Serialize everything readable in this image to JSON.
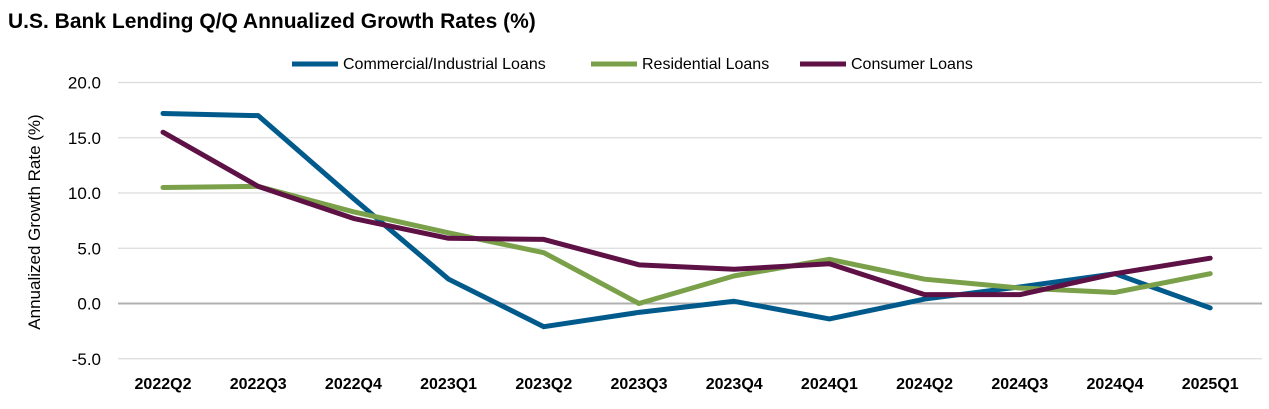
{
  "chart_data": {
    "type": "line",
    "title": "U.S. Bank Lending Q/Q Annualized Growth Rates (%)",
    "xlabel": "",
    "ylabel": "Annualized Growth Rate (%)",
    "ylim": [
      -5,
      20
    ],
    "yticks": [
      "20.0",
      "15.0",
      "10.0",
      "5.0",
      "0.0",
      "-5.0"
    ],
    "ytick_values": [
      20,
      15,
      10,
      5,
      0,
      -5
    ],
    "grid": true,
    "legend_position": "top",
    "categories": [
      "2022Q2",
      "2022Q3",
      "2022Q4",
      "2023Q1",
      "2023Q2",
      "2023Q3",
      "2023Q4",
      "2024Q1",
      "2024Q2",
      "2024Q3",
      "2024Q4",
      "2025Q1"
    ],
    "series": [
      {
        "name": "Commercial/Industrial Loans",
        "color": "#005a8c",
        "values": [
          17.2,
          17.0,
          9.5,
          2.2,
          -2.1,
          -0.8,
          0.2,
          -1.4,
          0.4,
          1.5,
          2.7,
          -0.4
        ]
      },
      {
        "name": "Residential Loans",
        "color": "#7aa04a",
        "values": [
          10.5,
          10.6,
          8.3,
          6.4,
          4.6,
          0.0,
          2.5,
          4.0,
          2.2,
          1.4,
          1.0,
          2.7
        ]
      },
      {
        "name": "Consumer Loans",
        "color": "#5e1145",
        "values": [
          15.5,
          10.6,
          7.7,
          5.9,
          5.8,
          3.5,
          3.1,
          3.6,
          0.8,
          0.8,
          2.7,
          4.1
        ]
      }
    ]
  }
}
